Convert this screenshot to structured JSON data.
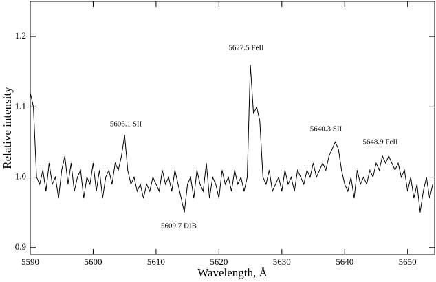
{
  "chart_data": {
    "type": "line",
    "x_label": "Wavelength, Å",
    "y_label": "Relative intensity",
    "annotations": [
      "5606.1 SII",
      "5609.7 DIB",
      "5627.5 FeII",
      "5640.3 SII",
      "5648.9 FeII"
    ],
    "xlim": [
      5590,
      5654.3
    ],
    "ylim": [
      0.89,
      1.25
    ],
    "xticks": [
      5590,
      5600,
      5610,
      5620,
      5630,
      5640,
      5650
    ],
    "yticks": [
      0.9,
      {
        "value": 1,
        "label": "1.0"
      },
      1.1,
      1.2
    ],
    "color": "#000000",
    "x": [
      5590,
      5590.5,
      5591,
      5591.5,
      5592,
      5592.5,
      5593,
      5593.5,
      5594,
      5594.5,
      5595,
      5595.5,
      5596,
      5596.5,
      5597,
      5597.5,
      5598,
      5598.5,
      5599,
      5599.5,
      5600,
      5600.5,
      5601,
      5601.5,
      5602,
      5602.5,
      5603,
      5603.5,
      5604,
      5604.5,
      5605,
      5605.5,
      5606,
      5606.5,
      5607,
      5607.5,
      5608,
      5608.5,
      5609,
      5609.5,
      5610,
      5610.5,
      5611,
      5611.5,
      5612,
      5612.5,
      5613,
      5613.5,
      5614,
      5614.5,
      5615,
      5615.5,
      5616,
      5616.5,
      5617,
      5617.5,
      5618,
      5618.5,
      5619,
      5619.5,
      5620,
      5620.5,
      5621,
      5621.5,
      5622,
      5622.5,
      5623,
      5623.5,
      5624,
      5624.5,
      5625,
      5625.5,
      5626,
      5626.5,
      5627,
      5627.5,
      5628,
      5628.5,
      5629,
      5629.5,
      5630,
      5630.5,
      5631,
      5631.5,
      5632,
      5632.5,
      5633,
      5633.5,
      5634,
      5634.5,
      5635,
      5635.5,
      5636,
      5636.5,
      5637,
      5637.5,
      5638,
      5638.5,
      5639,
      5639.5,
      5640,
      5640.5,
      5641,
      5641.5,
      5642,
      5642.5,
      5643,
      5643.5,
      5644,
      5644.5,
      5645,
      5645.5,
      5646,
      5646.5,
      5647,
      5647.5,
      5648,
      5648.5,
      5649,
      5649.5,
      5650,
      5650.5,
      5651,
      5651.5,
      5652,
      5652.5,
      5653,
      5653.5,
      5654
    ],
    "values": [
      1.12,
      1.1,
      1.0,
      0.99,
      1.01,
      0.98,
      1.02,
      0.99,
      1.0,
      0.97,
      1.01,
      1.03,
      0.99,
      1.02,
      0.98,
      1.0,
      1.01,
      0.97,
      1.0,
      0.99,
      1.02,
      0.98,
      1.01,
      0.97,
      1.0,
      1.01,
      0.99,
      1.02,
      1.01,
      1.03,
      1.06,
      1.01,
      0.99,
      1.0,
      0.98,
      0.99,
      0.97,
      0.99,
      0.98,
      1.0,
      0.99,
      0.98,
      1.01,
      0.99,
      1.0,
      0.98,
      1.01,
      0.99,
      0.97,
      0.95,
      0.99,
      1.0,
      0.97,
      1.01,
      0.99,
      0.98,
      1.02,
      0.97,
      1.0,
      0.99,
      0.97,
      1.01,
      0.99,
      1.0,
      0.98,
      1.01,
      0.99,
      1.0,
      0.98,
      1.0,
      1.16,
      1.09,
      1.1,
      1.08,
      1.0,
      0.99,
      1.01,
      0.98,
      0.99,
      1.0,
      0.98,
      1.01,
      0.99,
      1.0,
      0.98,
      1.01,
      1.0,
      0.99,
      1.01,
      1.0,
      1.02,
      1.0,
      1.01,
      1.02,
      1.01,
      1.03,
      1.04,
      1.05,
      1.04,
      1.01,
      0.99,
      0.98,
      1.0,
      0.97,
      1.01,
      0.99,
      1.0,
      0.99,
      1.01,
      1.0,
      1.02,
      1.01,
      1.03,
      1.02,
      1.03,
      1.02,
      1.01,
      1.02,
      1.0,
      1.01,
      0.98,
      1.0,
      0.97,
      0.99,
      0.95,
      0.98,
      1.0,
      0.97,
      0.99
    ]
  }
}
